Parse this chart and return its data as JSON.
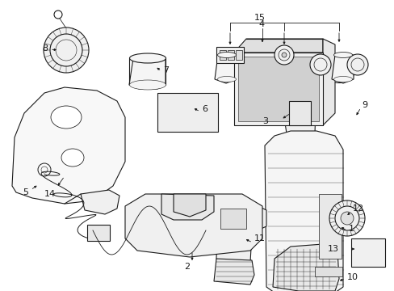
{
  "background_color": "#ffffff",
  "line_color": "#1a1a1a",
  "figure_width": 4.89,
  "figure_height": 3.6,
  "dpi": 100,
  "label_fontsize": 8,
  "arrow_lw": 0.6,
  "parts_lw": 0.8
}
